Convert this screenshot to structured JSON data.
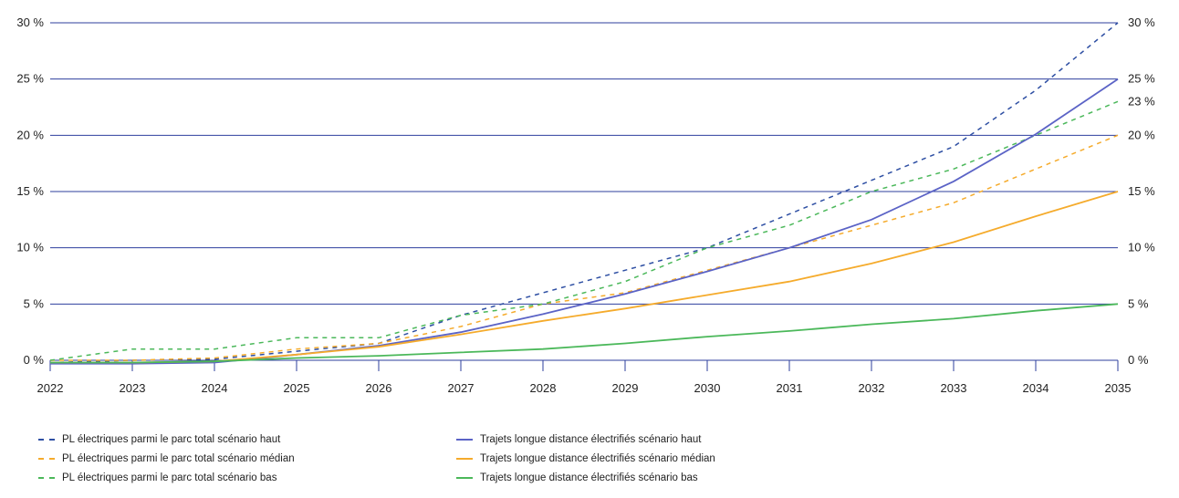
{
  "chart_data": {
    "type": "line",
    "x": [
      2022,
      2023,
      2024,
      2025,
      2026,
      2027,
      2028,
      2029,
      2030,
      2031,
      2032,
      2033,
      2034,
      2035
    ],
    "x_tick_labels": [
      "2022",
      "2023",
      "2024",
      "2025",
      "2026",
      "2027",
      "2028",
      "2029",
      "2030",
      "2031",
      "2032",
      "2033",
      "2034",
      "2035"
    ],
    "ylim": [
      0,
      30
    ],
    "y_ticks_left": [
      "0 %",
      "5 %",
      "10 %",
      "15 %",
      "20 %",
      "25 %",
      "30 %"
    ],
    "y_ticks_right": [
      {
        "value": 0,
        "label": "0 %"
      },
      {
        "value": 5,
        "label": "5 %"
      },
      {
        "value": 10,
        "label": "10 %"
      },
      {
        "value": 15,
        "label": "15 %"
      },
      {
        "value": 20,
        "label": "20 %"
      },
      {
        "value": 23,
        "label": "23 %"
      },
      {
        "value": 25,
        "label": "25 %"
      },
      {
        "value": 30,
        "label": "30 %"
      }
    ],
    "grid": true,
    "legend_position": "bottom",
    "series": [
      {
        "name": "PL électriques parmi le parc total scénario haut",
        "style": "dashed",
        "color": "#2e4fa3",
        "values": [
          -0.2,
          0,
          0.1,
          0.8,
          1.5,
          4,
          6,
          8,
          10,
          13,
          16,
          19,
          24,
          30
        ]
      },
      {
        "name": "PL électriques parmi le parc total scénario médian",
        "style": "dashed",
        "color": "#f5ab2c",
        "values": [
          0,
          0,
          0.2,
          1,
          1.5,
          3,
          5,
          6,
          8,
          10,
          12,
          14,
          17,
          20
        ]
      },
      {
        "name": "PL électriques parmi le parc total scénario bas",
        "style": "dashed",
        "color": "#4bb85a",
        "values": [
          0,
          1,
          1,
          2,
          2,
          4,
          5,
          7,
          10,
          12,
          15,
          17,
          20,
          23
        ]
      },
      {
        "name": "Trajets longue distance électrifiés scénario haut",
        "style": "solid",
        "color": "#5b63c6",
        "values": [
          -0.3,
          -0.3,
          -0.2,
          0.5,
          1.3,
          2.5,
          4.1,
          5.9,
          7.9,
          10,
          12.5,
          15.9,
          20.1,
          25
        ]
      },
      {
        "name": "Trajets longue distance électrifiés scénario médian",
        "style": "solid",
        "color": "#f5ab2c",
        "values": [
          -0.2,
          -0.2,
          -0.1,
          0.5,
          1.2,
          2.3,
          3.5,
          4.6,
          5.8,
          7,
          8.6,
          10.5,
          12.8,
          15
        ]
      },
      {
        "name": "Trajets longue distance électrifiés scénario bas",
        "style": "solid",
        "color": "#4bb85a",
        "values": [
          -0.2,
          -0.2,
          -0.1,
          0.2,
          0.4,
          0.7,
          1,
          1.5,
          2.1,
          2.6,
          3.2,
          3.7,
          4.4,
          5
        ]
      }
    ]
  }
}
